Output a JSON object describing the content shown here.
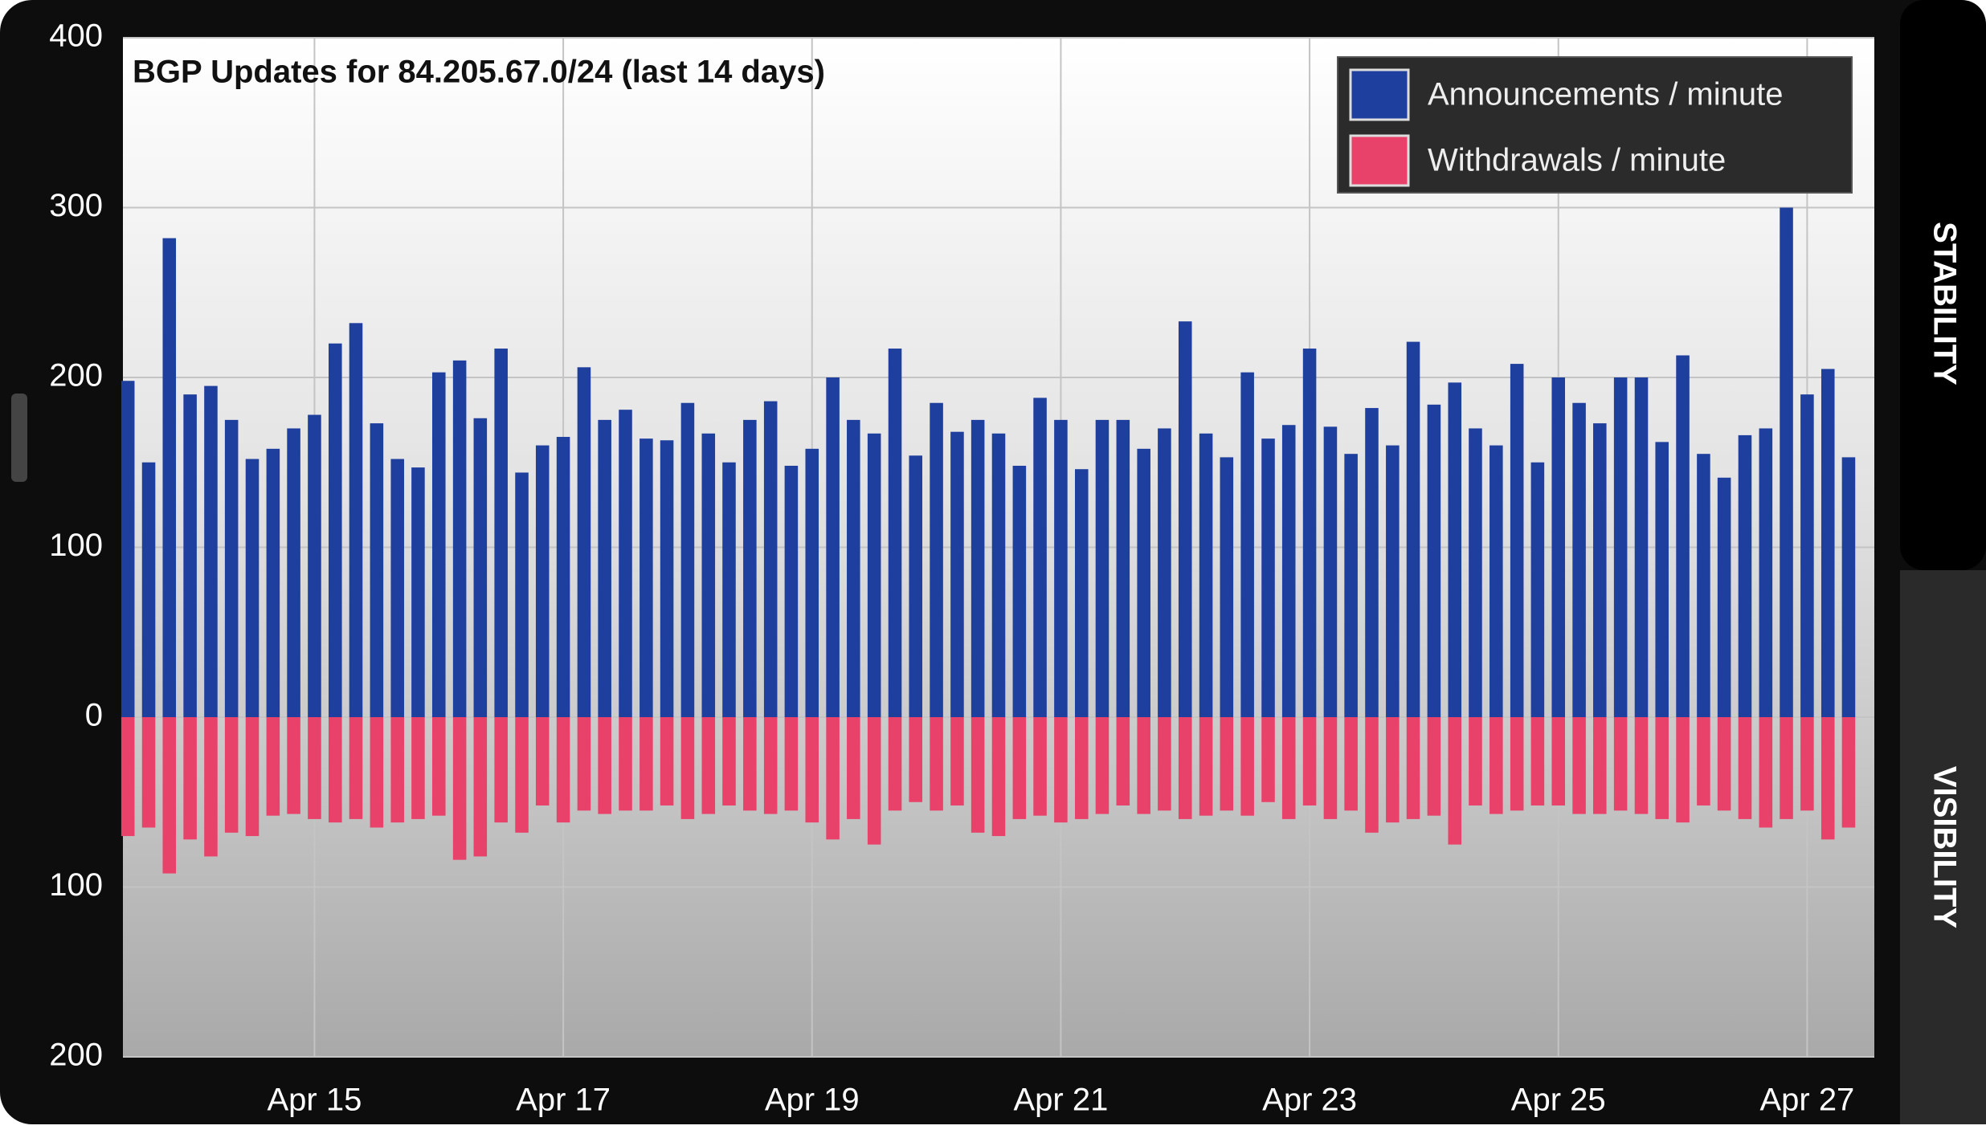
{
  "chart_data": {
    "type": "bar",
    "title": "BGP Updates for 84.205.67.0/24 (last 14 days)",
    "x": [
      13.5,
      13.667,
      13.833,
      14,
      14.167,
      14.333,
      14.5,
      14.667,
      14.833,
      15,
      15.167,
      15.333,
      15.5,
      15.667,
      15.833,
      16,
      16.167,
      16.333,
      16.5,
      16.667,
      16.833,
      17,
      17.167,
      17.333,
      17.5,
      17.667,
      17.833,
      18,
      18.167,
      18.333,
      18.5,
      18.667,
      18.833,
      19,
      19.167,
      19.333,
      19.5,
      19.667,
      19.833,
      20,
      20.167,
      20.333,
      20.5,
      20.667,
      20.833,
      21,
      21.167,
      21.333,
      21.5,
      21.667,
      21.833,
      22,
      22.167,
      22.333,
      22.5,
      22.667,
      22.833,
      23,
      23.167,
      23.333,
      23.5,
      23.667,
      23.833,
      24,
      24.167,
      24.333,
      24.5,
      24.667,
      24.833,
      25,
      25.167,
      25.333,
      25.5,
      25.667,
      25.833,
      26,
      26.167,
      26.333,
      26.5,
      26.667,
      26.833,
      27,
      27.167,
      27.333
    ],
    "series": [
      {
        "name": "Announcements / minute",
        "color": "#1f3f9e",
        "values": [
          198,
          150,
          282,
          190,
          195,
          175,
          152,
          158,
          170,
          178,
          220,
          232,
          173,
          152,
          147,
          203,
          210,
          176,
          217,
          144,
          160,
          165,
          206,
          175,
          181,
          164,
          163,
          185,
          167,
          150,
          175,
          186,
          148,
          158,
          200,
          175,
          167,
          217,
          154,
          185,
          168,
          175,
          167,
          148,
          188,
          175,
          146,
          175,
          175,
          158,
          170,
          233,
          167,
          153,
          203,
          164,
          172,
          217,
          171,
          155,
          182,
          160,
          221,
          184,
          197,
          170,
          160,
          208,
          150,
          200,
          185,
          173,
          200,
          200,
          162,
          213,
          155,
          141,
          166,
          170,
          300,
          190,
          205,
          153
        ]
      },
      {
        "name": "Withdrawals / minute",
        "color": "#e8426a",
        "values": [
          -70,
          -65,
          -92,
          -72,
          -82,
          -68,
          -70,
          -58,
          -57,
          -60,
          -62,
          -60,
          -65,
          -62,
          -60,
          -58,
          -84,
          -82,
          -62,
          -68,
          -52,
          -62,
          -55,
          -57,
          -55,
          -55,
          -52,
          -60,
          -57,
          -52,
          -55,
          -57,
          -55,
          -62,
          -72,
          -60,
          -75,
          -55,
          -50,
          -55,
          -52,
          -68,
          -70,
          -60,
          -58,
          -62,
          -60,
          -57,
          -52,
          -57,
          -55,
          -60,
          -58,
          -55,
          -58,
          -50,
          -60,
          -52,
          -60,
          -55,
          -68,
          -62,
          -60,
          -58,
          -75,
          -52,
          -57,
          -55,
          -52,
          -52,
          -57,
          -57,
          -55,
          -57,
          -60,
          -62,
          -52,
          -55,
          -60,
          -65,
          -60,
          -55,
          -72,
          -65
        ]
      }
    ],
    "xlim": [
      13.46,
      27.54
    ],
    "xticks": [
      {
        "value": 15,
        "label": "Apr 15"
      },
      {
        "value": 17,
        "label": "Apr 17"
      },
      {
        "value": 19,
        "label": "Apr 19"
      },
      {
        "value": 21,
        "label": "Apr 21"
      },
      {
        "value": 23,
        "label": "Apr 23"
      },
      {
        "value": 25,
        "label": "Apr 25"
      },
      {
        "value": 27,
        "label": "Apr 27"
      }
    ],
    "ylim": [
      -200,
      400
    ],
    "yticks": [
      {
        "value": -200,
        "label": "200"
      },
      {
        "value": -100,
        "label": "100"
      },
      0,
      100,
      200,
      300,
      400
    ],
    "grid": true,
    "legend": "top-right"
  },
  "tabs": [
    "STABILITY",
    "VISIBILITY"
  ]
}
